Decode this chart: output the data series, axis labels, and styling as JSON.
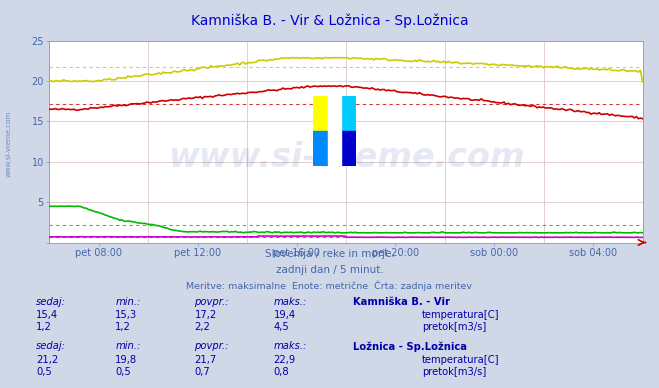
{
  "title": "Kamniška B. - Vir & Ložnica - Sp.Ložnica",
  "title_color": "#0000cc",
  "bg_color": "#d0d8e8",
  "plot_bg_color": "#ffffff",
  "xlabel_color": "#4466aa",
  "ylabel_color": "#4466aa",
  "x_tick_labels": [
    "pet 08:00",
    "pet 12:00",
    "pet 16:00",
    "pet 20:00",
    "sob 00:00",
    "sob 04:00"
  ],
  "y_ticks": [
    0,
    5,
    10,
    15,
    20,
    25
  ],
  "ylim": [
    0,
    25
  ],
  "subtitle1": "Slovenija / reke in morje.",
  "subtitle2": "zadnji dan / 5 minut.",
  "subtitle3": "Meritve: maksimalne  Enote: metrične  Črta: zadnja meritev",
  "subtitle_color": "#4466aa",
  "watermark": "www.si-vreme.com",
  "watermark_color": "#3355cc",
  "n_points": 288,
  "station1_name": "Kamniška B. - Vir",
  "station1_temp_color": "#cc0000",
  "station1_flow_color": "#00bb00",
  "station1_temp_sedaj": "15,4",
  "station1_temp_min": "15,3",
  "station1_temp_povpr": "17,2",
  "station1_temp_maks": "19,4",
  "station1_temp_povpr_val": 17.2,
  "station1_flow_sedaj": "1,2",
  "station1_flow_min": "1,2",
  "station1_flow_povpr": "2,2",
  "station1_flow_maks": "4,5",
  "station1_flow_povpr_val": 2.2,
  "station2_name": "Ložnica - Sp.Ložnica",
  "station2_temp_color": "#cccc00",
  "station2_flow_color": "#cc00cc",
  "station2_temp_sedaj": "21,2",
  "station2_temp_min": "19,8",
  "station2_temp_povpr": "21,7",
  "station2_temp_maks": "22,9",
  "station2_temp_povpr_val": 21.7,
  "station2_flow_sedaj": "0,5",
  "station2_flow_min": "0,5",
  "station2_flow_povpr": "0,7",
  "station2_flow_maks": "0,8",
  "station2_flow_povpr_val": 0.7,
  "text_color": "#0000aa",
  "header_color": "#0000aa",
  "left_label": "www.si-vreme.com"
}
